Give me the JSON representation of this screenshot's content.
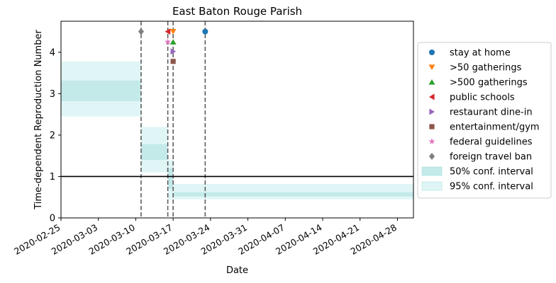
{
  "chart_data": {
    "type": "line",
    "title": "East Baton Rouge Parish",
    "xlabel": "Date",
    "ylabel": "Time-dependent Reproduction Number",
    "x_range": [
      "2020-02-25",
      "2020-05-01"
    ],
    "ylim": [
      0,
      4.75
    ],
    "x_ticks": [
      "2020-02-25",
      "2020-03-03",
      "2020-03-10",
      "2020-03-17",
      "2020-03-24",
      "2020-03-31",
      "2020-04-07",
      "2020-04-14",
      "2020-04-21",
      "2020-04-28"
    ],
    "y_ticks": [
      0,
      1,
      2,
      3,
      4
    ],
    "reference_line": 1,
    "grid": false,
    "legend_position": "right",
    "confidence_bands": [
      {
        "start": "2020-02-25",
        "end": "2020-03-11",
        "lo50": 2.82,
        "hi50": 3.32,
        "lo95": 2.45,
        "hi95": 3.78
      },
      {
        "start": "2020-03-11",
        "end": "2020-03-16",
        "lo50": 1.4,
        "hi50": 1.78,
        "lo95": 1.1,
        "hi95": 2.2
      },
      {
        "start": "2020-03-16",
        "end": "2020-03-17",
        "lo50": 0.7,
        "hi50": 1.2,
        "lo95": 0.45,
        "hi95": 1.4
      },
      {
        "start": "2020-03-17",
        "end": "2020-05-01",
        "lo50": 0.52,
        "hi50": 0.62,
        "lo95": 0.45,
        "hi95": 0.82
      }
    ],
    "interventions": [
      {
        "name": "stay at home",
        "date": "2020-03-23",
        "y": 4.5,
        "marker": "circle",
        "color": "#1f77b4"
      },
      {
        "name": ">50 gatherings",
        "date": "2020-03-17",
        "y": 4.5,
        "marker": "triangle-down",
        "color": "#ff7f0e"
      },
      {
        "name": ">500 gatherings",
        "date": "2020-03-17",
        "y": 4.25,
        "marker": "triangle-up",
        "color": "#2ca02c"
      },
      {
        "name": "public schools",
        "date": "2020-03-16",
        "y": 4.5,
        "marker": "triangle-left",
        "color": "#d62728"
      },
      {
        "name": "restaurant dine-in",
        "date": "2020-03-17",
        "y": 4.02,
        "marker": "triangle-right",
        "color": "#9467bd"
      },
      {
        "name": "entertainment/gym",
        "date": "2020-03-17",
        "y": 3.78,
        "marker": "square",
        "color": "#8c564b"
      },
      {
        "name": "federal guidelines",
        "date": "2020-03-16",
        "y": 4.25,
        "marker": "star",
        "color": "#e377c2"
      },
      {
        "name": "foreign travel ban",
        "date": "2020-03-11",
        "y": 4.5,
        "marker": "diamond",
        "color": "#7f7f7f"
      }
    ],
    "vlines": [
      "2020-03-11",
      "2020-03-16",
      "2020-03-17",
      "2020-03-23"
    ],
    "legend": [
      {
        "label": "stay at home",
        "kind": "marker",
        "marker": "circle",
        "color": "#1f77b4"
      },
      {
        "label": ">50 gatherings",
        "kind": "marker",
        "marker": "triangle-down",
        "color": "#ff7f0e"
      },
      {
        "label": ">500 gatherings",
        "kind": "marker",
        "marker": "triangle-up",
        "color": "#2ca02c"
      },
      {
        "label": "public schools",
        "kind": "marker",
        "marker": "triangle-left",
        "color": "#d62728"
      },
      {
        "label": "restaurant dine-in",
        "kind": "marker",
        "marker": "triangle-right",
        "color": "#9467bd"
      },
      {
        "label": "entertainment/gym",
        "kind": "marker",
        "marker": "square",
        "color": "#8c564b"
      },
      {
        "label": "federal guidelines",
        "kind": "marker",
        "marker": "star",
        "color": "#e377c2"
      },
      {
        "label": "foreign travel ban",
        "kind": "marker",
        "marker": "diamond",
        "color": "#7f7f7f"
      },
      {
        "label": "50% conf. interval",
        "kind": "patch",
        "color": "#c4e9e9"
      },
      {
        "label": "95% conf. interval",
        "kind": "patch",
        "color": "#e0f6f6"
      }
    ],
    "colors": {
      "ci50": "#c4e9e9",
      "ci95": "#e0f6f6",
      "vline": "#555555",
      "refline": "#000000"
    }
  }
}
